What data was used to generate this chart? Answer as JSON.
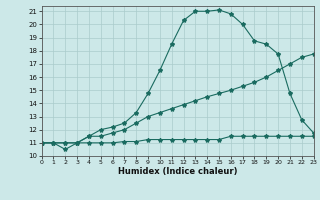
{
  "background_color": "#cce8e8",
  "grid_color": "#aacccc",
  "line_color": "#1a6b60",
  "xlabel": "Humidex (Indice chaleur)",
  "xlim": [
    0,
    23
  ],
  "ylim": [
    10,
    21.4
  ],
  "yticks": [
    10,
    11,
    12,
    13,
    14,
    15,
    16,
    17,
    18,
    19,
    20,
    21
  ],
  "xticks": [
    0,
    1,
    2,
    3,
    4,
    5,
    6,
    7,
    8,
    9,
    10,
    11,
    12,
    13,
    14,
    15,
    16,
    17,
    18,
    19,
    20,
    21,
    22,
    23
  ],
  "line1_x": [
    0,
    1,
    2,
    3,
    4,
    5,
    6,
    7,
    8,
    9,
    10,
    11,
    12,
    13,
    14,
    15,
    16,
    17,
    18,
    19,
    20,
    21,
    22,
    23
  ],
  "line1_y": [
    11,
    11,
    10.5,
    11,
    11.5,
    12,
    12.2,
    12.5,
    13.3,
    14.75,
    16.5,
    18.5,
    20.3,
    21.0,
    21.0,
    21.1,
    20.8,
    20.0,
    18.75,
    18.5,
    17.75,
    14.75,
    12.75,
    11.75
  ],
  "line2_x": [
    0,
    1,
    2,
    3,
    4,
    5,
    6,
    7,
    8,
    9,
    10,
    11,
    12,
    13,
    14,
    15,
    16,
    17,
    18,
    19,
    20,
    21,
    22,
    23
  ],
  "line2_y": [
    11,
    11,
    11,
    11,
    11.5,
    11.5,
    11.75,
    12,
    12.5,
    13,
    13.3,
    13.6,
    13.9,
    14.2,
    14.5,
    14.75,
    15.0,
    15.3,
    15.6,
    16.0,
    16.5,
    17.0,
    17.5,
    17.75
  ],
  "line3_x": [
    0,
    1,
    2,
    3,
    4,
    5,
    6,
    7,
    8,
    9,
    10,
    11,
    12,
    13,
    14,
    15,
    16,
    17,
    18,
    19,
    20,
    21,
    22,
    23
  ],
  "line3_y": [
    11,
    11,
    11,
    11,
    11,
    11,
    11,
    11.1,
    11.1,
    11.25,
    11.25,
    11.25,
    11.25,
    11.25,
    11.25,
    11.25,
    11.5,
    11.5,
    11.5,
    11.5,
    11.5,
    11.5,
    11.5,
    11.5
  ]
}
